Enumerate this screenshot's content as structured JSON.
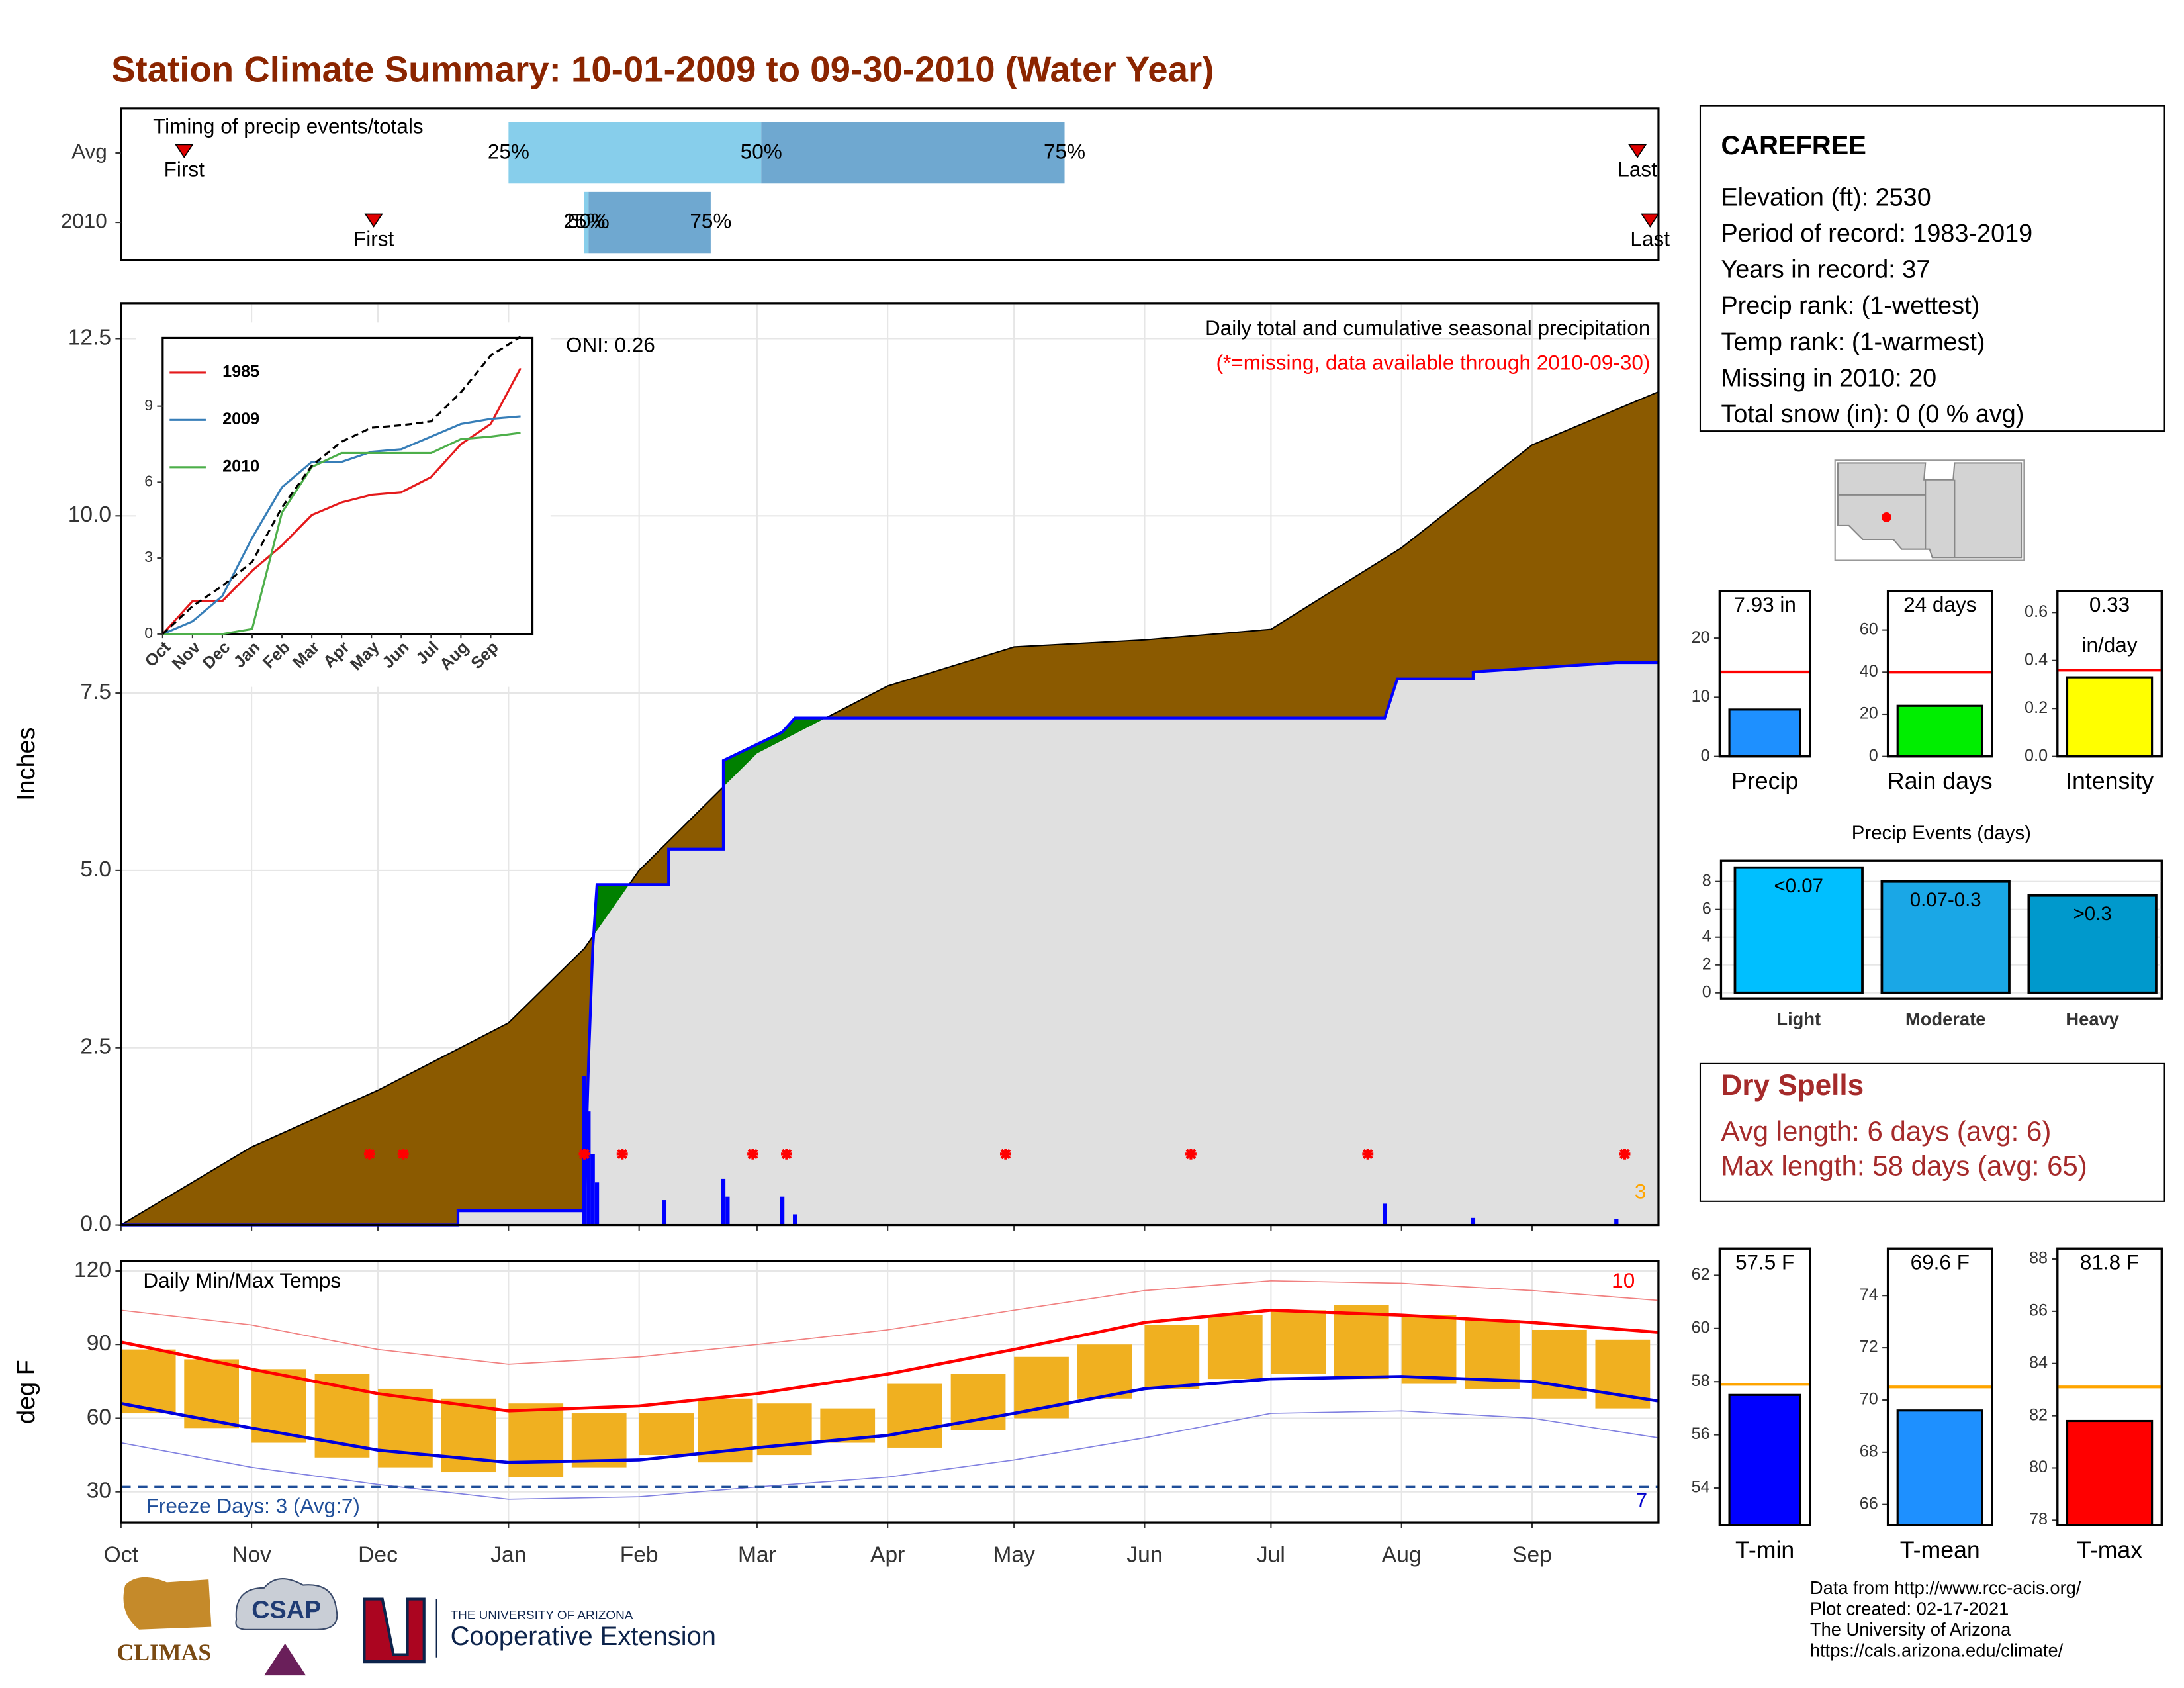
{
  "title": "Station Climate Summary: 10-01-2009 to 09-30-2010 (Water Year)",
  "station": {
    "name": "CAREFREE",
    "lines": [
      "Elevation (ft): 2530",
      "Period of record: 1983-2019",
      "Years in record: 37",
      "Precip rank:  (1-wettest)",
      "Temp rank:  (1-warmest)",
      "Missing in 2010: 20",
      "Total snow (in): 0 (0 % avg)"
    ]
  },
  "dry_spells": {
    "title": "Dry Spells",
    "lines": [
      "Avg length: 6 days (avg: 6)",
      "Max length: 58 days (avg: 65)"
    ]
  },
  "footer": {
    "lines": [
      "Data from http://www.rcc-acis.org/",
      "Plot created: 02-17-2021",
      "The University of Arizona",
      "https://cals.arizona.edu/climate/"
    ],
    "logos": [
      "CLIMAS",
      "CSAP",
      "THE UNIVERSITY OF ARIZONA",
      "Cooperative Extension"
    ]
  },
  "chart_data": [
    {
      "type": "timing",
      "title": "Timing of precip events/totals",
      "xlim": [
        0,
        365
      ],
      "point_labels": [
        "First",
        "25%",
        "50%",
        "75%",
        "Last"
      ],
      "series": [
        {
          "name": "Avg",
          "values": [
            15,
            92,
            152,
            224,
            360
          ]
        },
        {
          "name": "2010",
          "values": [
            60,
            110,
            111,
            140,
            363
          ]
        }
      ],
      "colors": [
        "#87ceeb",
        "#6fa8d0"
      ],
      "marker_color": "#e00000"
    },
    {
      "type": "cumulative",
      "title": "Daily total and cumulative seasonal precipitation",
      "subtitle": "(*=missing, data available through 2010-09-30)",
      "annotation": "ONI: 0.26",
      "corner_label": "3",
      "y_label": "Inches",
      "xlim": [
        0,
        365
      ],
      "xticks": [
        0,
        31,
        61,
        92,
        123,
        151,
        182,
        212,
        243,
        273,
        304,
        335
      ],
      "ylim": [
        0,
        13
      ],
      "yticks": [
        {
          "value": 0,
          "label": "0.0"
        },
        2.5,
        {
          "value": 5,
          "label": "5.0"
        },
        7.5,
        {
          "value": 10,
          "label": "10.0"
        },
        12.5
      ],
      "grid": true,
      "series": [
        {
          "color": "#8b5a00",
          "x": [
            0,
            31,
            61,
            92,
            110,
            123,
            151,
            182,
            212,
            243,
            273,
            304,
            335,
            365
          ],
          "values": [
            0,
            1.1,
            1.9,
            2.85,
            3.9,
            5.0,
            6.65,
            7.6,
            8.15,
            8.25,
            8.4,
            9.55,
            11.0,
            11.75
          ]
        },
        {
          "color": "#0000ff",
          "x": [
            0,
            80,
            80,
            110,
            111,
            112,
            113,
            130,
            130,
            143,
            143,
            157,
            160,
            300,
            303,
            321,
            321,
            355,
            365
          ],
          "values": [
            0,
            0,
            0.2,
            0.2,
            2.3,
            3.9,
            4.8,
            4.8,
            5.3,
            5.3,
            6.55,
            6.95,
            7.15,
            7.15,
            7.7,
            7.7,
            7.8,
            7.93,
            7.93
          ]
        }
      ],
      "fill_above": "#008000",
      "fill_below": "#e0e0e0",
      "daily": {
        "color": "#0000ff",
        "x": [
          110,
          111,
          112,
          113,
          129,
          143,
          144,
          157,
          160,
          300,
          321,
          355
        ],
        "values": [
          2.1,
          1.6,
          1.0,
          0.6,
          0.35,
          0.65,
          0.4,
          0.4,
          0.15,
          0.3,
          0.1,
          0.08
        ]
      },
      "missing_x": [
        59,
        67,
        110,
        119,
        150,
        158,
        210,
        254,
        296,
        357
      ],
      "missing_y": 1.0,
      "missing_color": "#ff0000"
    },
    {
      "type": "line",
      "xlim": [
        0,
        12.4
      ],
      "xticks": [
        {
          "value": 0,
          "label": "Oct"
        },
        {
          "value": 1,
          "label": "Nov"
        },
        {
          "value": 2,
          "label": "Dec"
        },
        {
          "value": 3,
          "label": "Jan"
        },
        {
          "value": 4,
          "label": "Feb"
        },
        {
          "value": 5,
          "label": "Mar"
        },
        {
          "value": 6,
          "label": "Apr"
        },
        {
          "value": 7,
          "label": "May"
        },
        {
          "value": 8,
          "label": "Jun"
        },
        {
          "value": 9,
          "label": "Jul"
        },
        {
          "value": 10,
          "label": "Aug"
        },
        {
          "value": 11,
          "label": "Sep"
        }
      ],
      "ylim": [
        0,
        11.7
      ],
      "yticks": [
        0,
        3,
        6,
        9
      ],
      "x": [
        0,
        1,
        2,
        3,
        4,
        5,
        6,
        7,
        8,
        9,
        10,
        11,
        12
      ],
      "series": [
        {
          "name": "1985",
          "color": "#e41a1c",
          "values": [
            0,
            1.3,
            1.3,
            2.5,
            3.5,
            4.7,
            5.2,
            5.5,
            5.6,
            6.2,
            7.5,
            8.3,
            10.5
          ]
        },
        {
          "name": "2009",
          "color": "#377eb8",
          "values": [
            0,
            0.5,
            1.5,
            3.8,
            5.8,
            6.8,
            6.8,
            7.2,
            7.3,
            7.8,
            8.3,
            8.5,
            8.6
          ]
        },
        {
          "name": "2010",
          "color": "#4daf4a",
          "values": [
            0,
            0,
            0,
            0.2,
            4.8,
            6.6,
            7.15,
            7.15,
            7.15,
            7.15,
            7.7,
            7.8,
            7.95
          ]
        },
        {
          "color": "#000000",
          "dash": true,
          "values": [
            0,
            1.1,
            1.9,
            2.85,
            5.0,
            6.65,
            7.6,
            8.15,
            8.25,
            8.4,
            9.55,
            11.0,
            11.75
          ]
        }
      ]
    },
    {
      "type": "temps",
      "title": "Daily Min/Max Temps",
      "annotation": "Freeze Days: 3 (Avg:7)",
      "top_label": "10",
      "bottom_label": "7",
      "y_label": "deg F",
      "xlim": [
        0,
        365
      ],
      "xticks": [
        {
          "value": 0,
          "label": "Oct"
        },
        {
          "value": 31,
          "label": "Nov"
        },
        {
          "value": 61,
          "label": "Dec"
        },
        {
          "value": 92,
          "label": "Jan"
        },
        {
          "value": 123,
          "label": "Feb"
        },
        {
          "value": 151,
          "label": "Mar"
        },
        {
          "value": 182,
          "label": "Apr"
        },
        {
          "value": 212,
          "label": "May"
        },
        {
          "value": 243,
          "label": "Jun"
        },
        {
          "value": 273,
          "label": "Jul"
        },
        {
          "value": 304,
          "label": "Aug"
        },
        {
          "value": 335,
          "label": "Sep"
        }
      ],
      "ylim": [
        17.5,
        124
      ],
      "yticks": [
        30,
        60,
        90,
        120
      ],
      "grid": true,
      "freeze_line": 32,
      "freeze_color": "#1f4e99",
      "bars": {
        "color": "#f0b020",
        "width": 13,
        "x": [
          0,
          15,
          31,
          46,
          61,
          76,
          92,
          107,
          123,
          137,
          151,
          166,
          182,
          197,
          212,
          227,
          243,
          258,
          273,
          288,
          304,
          319,
          335,
          350
        ],
        "max": [
          88,
          84,
          80,
          78,
          72,
          68,
          66,
          62,
          62,
          68,
          66,
          64,
          74,
          78,
          85,
          90,
          98,
          102,
          104,
          106,
          102,
          100,
          96,
          92
        ],
        "min": [
          62,
          56,
          50,
          44,
          40,
          38,
          36,
          40,
          45,
          42,
          45,
          50,
          48,
          55,
          60,
          68,
          72,
          76,
          78,
          76,
          74,
          72,
          68,
          64
        ]
      },
      "x": [
        0,
        31,
        61,
        92,
        123,
        151,
        182,
        212,
        243,
        273,
        304,
        335,
        365
      ],
      "series": [
        {
          "color": "#ff0000",
          "values": [
            91,
            80,
            70,
            63,
            65,
            70,
            78,
            88,
            99,
            104,
            102,
            99,
            95
          ]
        },
        {
          "color": "#0000dd",
          "values": [
            66,
            56,
            47,
            42,
            43,
            48,
            53,
            62,
            72,
            76,
            77,
            75,
            67
          ]
        },
        {
          "color": "#f08080",
          "values": [
            104,
            98,
            88,
            82,
            85,
            90,
            96,
            104,
            112,
            116,
            115,
            112,
            108
          ]
        },
        {
          "color": "#8080e0",
          "values": [
            50,
            40,
            33,
            27,
            28,
            32,
            36,
            43,
            52,
            62,
            63,
            60,
            52
          ]
        }
      ]
    },
    {
      "type": "single_bar",
      "category": "Precip",
      "value": 7.93,
      "value_label": "7.93 in",
      "average": 14.3,
      "ylim": [
        0,
        28
      ],
      "yticks": [
        0,
        10,
        20
      ],
      "color": "#1e90ff",
      "average_color": "#ff0000"
    },
    {
      "type": "single_bar",
      "category": "Rain days",
      "value": 24,
      "value_label": "24 days",
      "average": 40,
      "ylim": [
        0,
        78.5
      ],
      "yticks": [
        0,
        20,
        40,
        60
      ],
      "color": "#00ee00",
      "average_color": "#ff0000"
    },
    {
      "type": "single_bar",
      "category": "Intensity",
      "value": 0.33,
      "value_label": "0.33",
      "unit": "in/day",
      "average": 0.36,
      "ylim": [
        0,
        0.69
      ],
      "yticks": [
        {
          "value": 0,
          "label": "0.0"
        },
        0.2,
        0.4,
        0.6
      ],
      "color": "#ffff00",
      "average_color": "#ff0000"
    },
    {
      "type": "bar",
      "title": "Precip Events (days)",
      "categories": [
        "Light",
        "Moderate",
        "Heavy"
      ],
      "values": [
        9,
        8,
        7
      ],
      "bar_labels": [
        "<0.07",
        "0.07-0.3",
        ">0.3"
      ],
      "colors": [
        "#00bfff",
        "#1aa7e6",
        "#0099cc"
      ],
      "ylim": [
        0,
        9.5
      ],
      "yticks": [
        0,
        2,
        4,
        6,
        8
      ]
    },
    {
      "type": "single_bar",
      "category": "T-min",
      "value": 57.5,
      "value_label": "57.5 F",
      "average": 57.9,
      "ylim": [
        52.6,
        63
      ],
      "yticks": [
        54,
        56,
        58,
        60,
        62
      ],
      "color": "#0000ff",
      "average_color": "#ffa500"
    },
    {
      "type": "single_bar",
      "category": "T-mean",
      "value": 69.6,
      "value_label": "69.6 F",
      "average": 70.5,
      "ylim": [
        65.2,
        75.8
      ],
      "yticks": [
        66,
        68,
        70,
        72,
        74
      ],
      "color": "#1e90ff",
      "average_color": "#ffa500"
    },
    {
      "type": "single_bar",
      "category": "T-max",
      "value": 81.8,
      "value_label": "81.8 F",
      "average": 83.1,
      "ylim": [
        77.8,
        88.4
      ],
      "yticks": [
        78,
        80,
        82,
        84,
        86,
        88
      ],
      "color": "#ff0000",
      "average_color": "#ffa500"
    }
  ]
}
